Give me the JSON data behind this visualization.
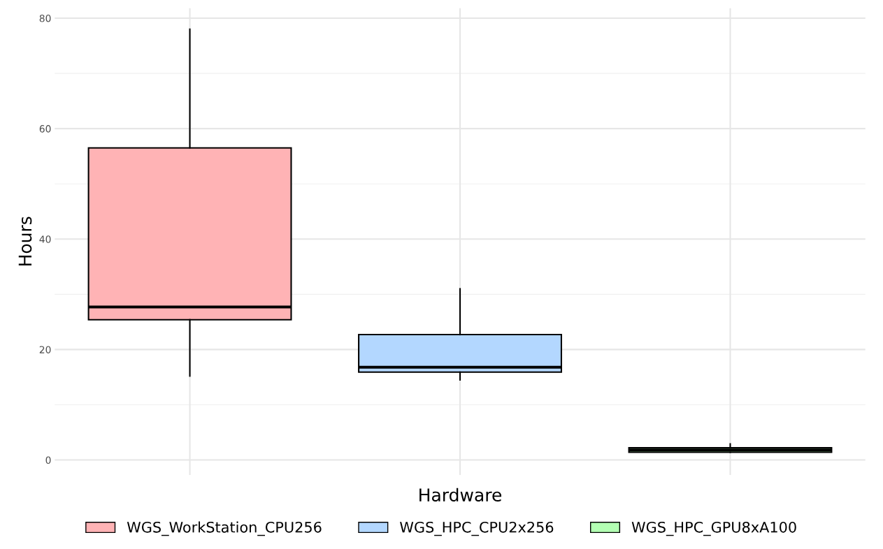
{
  "chart_data": {
    "type": "box",
    "xlabel": "Hardware",
    "ylabel": "Hours",
    "categories": [
      null,
      null,
      null
    ],
    "series": [
      {
        "name": "WGS_WorkStation_CPU256",
        "color": "#ffb3b5",
        "boxes": [
          {
            "low": 15.2,
            "q1": 25.4,
            "median": 27.7,
            "q3": 56.5,
            "high": 78
          },
          null,
          null
        ]
      },
      {
        "name": "WGS_HPC_CPU2x256",
        "color": "#b3d7ff",
        "boxes": [
          null,
          {
            "low": 14.5,
            "q1": 15.9,
            "median": 16.8,
            "q3": 22.7,
            "high": 31
          },
          null
        ]
      },
      {
        "name": "WGS_HPC_GPU8xA100",
        "color": "#b3ffb3",
        "boxes": [
          null,
          null,
          {
            "low": 1.4,
            "q1": 1.4,
            "median": 1.8,
            "q3": 2.2,
            "high": 2.9
          }
        ]
      }
    ],
    "ylim": [
      -2.7,
      81.8
    ],
    "yticks": [
      0,
      20,
      40,
      60,
      80
    ],
    "grid": true,
    "legend": "bottom"
  }
}
